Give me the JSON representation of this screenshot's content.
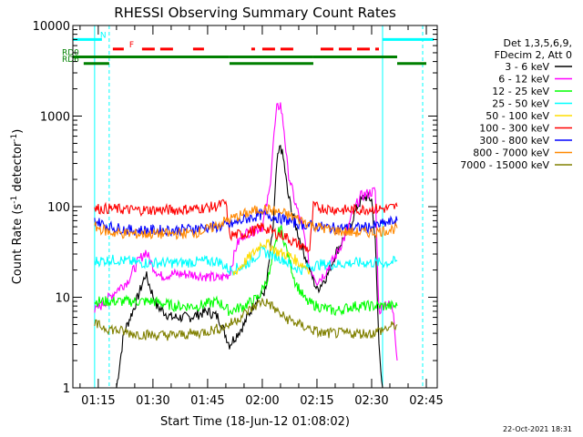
{
  "chart_data": {
    "type": "line",
    "title": "RHESSI Observing Summary Count Rates",
    "xlabel": "Start Time (18-Jun-12 01:08:02)",
    "ylabel_main": "Count Rate (s",
    "ylabel_sup1": "-1",
    "ylabel_mid": " detector",
    "ylabel_sup2": "-1",
    "ylabel_end": ")",
    "y_scale": "log",
    "xlim": [
      "01:08:02",
      "02:48:00"
    ],
    "ylim": [
      1,
      10000
    ],
    "x_ticks": [
      "01:15",
      "01:30",
      "01:45",
      "02:00",
      "02:15",
      "02:30",
      "02:45"
    ],
    "y_ticks": [
      {
        "value": 1,
        "label": "1"
      },
      {
        "value": 10,
        "label": "10"
      },
      {
        "value": 100,
        "label": "100"
      },
      {
        "value": 1000,
        "label": "1000"
      },
      {
        "value": 10000,
        "label": "10000"
      }
    ],
    "legend_header": [
      "Det 1,3,5,6,9,",
      "FDecim 2, Att 0"
    ],
    "legend_placement": "right",
    "series": [
      {
        "name": "3 - 6 keV",
        "color": "#000000",
        "points": [
          [
            "01:20",
            1
          ],
          [
            "01:22",
            4
          ],
          [
            "01:25",
            8
          ],
          [
            "01:28",
            18
          ],
          [
            "01:31",
            8
          ],
          [
            "01:35",
            6
          ],
          [
            "01:40",
            6
          ],
          [
            "01:45",
            7
          ],
          [
            "01:48",
            6
          ],
          [
            "01:51",
            3
          ],
          [
            "01:55",
            5
          ],
          [
            "01:58",
            9
          ],
          [
            "02:01",
            12
          ],
          [
            "02:03",
            60
          ],
          [
            "02:04",
            300
          ],
          [
            "02:05",
            480
          ],
          [
            "02:06",
            300
          ],
          [
            "02:07",
            140
          ],
          [
            "02:09",
            65
          ],
          [
            "02:11",
            35
          ],
          [
            "02:13",
            20
          ],
          [
            "02:15",
            12
          ],
          [
            "02:18",
            18
          ],
          [
            "02:20",
            30
          ],
          [
            "02:24",
            60
          ],
          [
            "02:26",
            100
          ],
          [
            "02:28",
            130
          ],
          [
            "02:30",
            120
          ],
          [
            "02:31",
            40
          ],
          [
            "02:32",
            3
          ],
          [
            "02:33",
            1
          ]
        ]
      },
      {
        "name": "6 - 12 keV",
        "color": "#ff00ff",
        "points": [
          [
            "01:14",
            7
          ],
          [
            "01:17",
            9
          ],
          [
            "01:20",
            12
          ],
          [
            "01:23",
            15
          ],
          [
            "01:26",
            25
          ],
          [
            "01:28",
            32
          ],
          [
            "01:30",
            22
          ],
          [
            "01:32",
            17
          ],
          [
            "01:35",
            18
          ],
          [
            "01:40",
            18
          ],
          [
            "01:45",
            17
          ],
          [
            "01:48",
            16
          ],
          [
            "01:51",
            18
          ],
          [
            "01:53",
            38
          ],
          [
            "01:55",
            50
          ],
          [
            "01:58",
            55
          ],
          [
            "02:00",
            60
          ],
          [
            "02:02",
            150
          ],
          [
            "02:03",
            500
          ],
          [
            "02:04",
            1200
          ],
          [
            "02:05",
            1350
          ],
          [
            "02:06",
            700
          ],
          [
            "02:07",
            250
          ],
          [
            "02:09",
            110
          ],
          [
            "02:11",
            60
          ],
          [
            "02:13",
            22
          ],
          [
            "02:15",
            15
          ],
          [
            "02:17",
            18
          ],
          [
            "02:20",
            28
          ],
          [
            "02:23",
            50
          ],
          [
            "02:25",
            90
          ],
          [
            "02:27",
            130
          ],
          [
            "02:29",
            140
          ],
          [
            "02:31",
            150
          ],
          [
            "02:32",
            7
          ],
          [
            "02:34",
            9
          ],
          [
            "02:36",
            7
          ],
          [
            "02:37",
            2
          ]
        ]
      },
      {
        "name": "12 - 25 keV",
        "color": "#00ff00",
        "points": [
          [
            "01:14",
            9
          ],
          [
            "01:18",
            9
          ],
          [
            "01:24",
            9
          ],
          [
            "01:30",
            9
          ],
          [
            "01:36",
            8
          ],
          [
            "01:42",
            8
          ],
          [
            "01:48",
            9
          ],
          [
            "01:51",
            7
          ],
          [
            "01:55",
            8
          ],
          [
            "01:59",
            10
          ],
          [
            "02:02",
            18
          ],
          [
            "02:04",
            45
          ],
          [
            "02:05",
            60
          ],
          [
            "02:07",
            30
          ],
          [
            "02:09",
            15
          ],
          [
            "02:12",
            9
          ],
          [
            "02:15",
            8
          ],
          [
            "02:20",
            7
          ],
          [
            "02:25",
            8
          ],
          [
            "02:30",
            8
          ],
          [
            "02:33",
            8
          ],
          [
            "02:37",
            8
          ]
        ]
      },
      {
        "name": "25 - 50 keV",
        "color": "#00ffff",
        "points": [
          [
            "01:14",
            25
          ],
          [
            "01:20",
            26
          ],
          [
            "01:26",
            24
          ],
          [
            "01:32",
            24
          ],
          [
            "01:38",
            24
          ],
          [
            "01:44",
            25
          ],
          [
            "01:48",
            25
          ],
          [
            "01:51",
            20
          ],
          [
            "01:55",
            22
          ],
          [
            "01:58",
            28
          ],
          [
            "02:00",
            32
          ],
          [
            "02:02",
            30
          ],
          [
            "02:04",
            28
          ],
          [
            "02:06",
            26
          ],
          [
            "02:08",
            22
          ],
          [
            "02:11",
            20
          ],
          [
            "02:13",
            22
          ],
          [
            "02:16",
            23
          ],
          [
            "02:20",
            23
          ],
          [
            "02:25",
            24
          ],
          [
            "02:30",
            24
          ],
          [
            "02:34",
            24
          ],
          [
            "02:37",
            25
          ]
        ]
      },
      {
        "name": "50 - 100 keV",
        "color": "#ffdd00",
        "points": [
          [
            "01:52",
            18
          ],
          [
            "01:55",
            24
          ],
          [
            "01:58",
            32
          ],
          [
            "02:00",
            40
          ],
          [
            "02:02",
            38
          ],
          [
            "02:04",
            32
          ],
          [
            "02:06",
            30
          ],
          [
            "02:08",
            28
          ],
          [
            "02:10",
            24
          ],
          [
            "02:12",
            22
          ],
          [
            "02:13",
            20
          ]
        ]
      },
      {
        "name": "100 - 300 keV",
        "color": "#ff0000",
        "points": [
          [
            "01:14",
            95
          ],
          [
            "01:18",
            95
          ],
          [
            "01:24",
            92
          ],
          [
            "01:30",
            92
          ],
          [
            "01:36",
            92
          ],
          [
            "01:42",
            95
          ],
          [
            "01:47",
            100
          ],
          [
            "01:50",
            110
          ],
          [
            "01:51",
            48
          ],
          [
            "01:55",
            50
          ],
          [
            "01:58",
            55
          ],
          [
            "02:00",
            60
          ],
          [
            "02:02",
            55
          ],
          [
            "02:04",
            50
          ],
          [
            "02:06",
            48
          ],
          [
            "02:08",
            42
          ],
          [
            "02:10",
            38
          ],
          [
            "02:12",
            35
          ],
          [
            "02:13",
            33
          ],
          [
            "02:14",
            100
          ],
          [
            "02:18",
            95
          ],
          [
            "02:22",
            92
          ],
          [
            "02:26",
            92
          ],
          [
            "02:30",
            95
          ],
          [
            "02:34",
            95
          ],
          [
            "02:37",
            100
          ]
        ]
      },
      {
        "name": "300 - 800 keV",
        "color": "#0000ff",
        "points": [
          [
            "01:14",
            70
          ],
          [
            "01:18",
            60
          ],
          [
            "01:24",
            55
          ],
          [
            "01:30",
            55
          ],
          [
            "01:36",
            55
          ],
          [
            "01:42",
            58
          ],
          [
            "01:48",
            60
          ],
          [
            "01:51",
            62
          ],
          [
            "01:55",
            72
          ],
          [
            "01:58",
            78
          ],
          [
            "02:00",
            82
          ],
          [
            "02:02",
            80
          ],
          [
            "02:04",
            76
          ],
          [
            "02:06",
            72
          ],
          [
            "02:08",
            68
          ],
          [
            "02:10",
            65
          ],
          [
            "02:13",
            62
          ],
          [
            "02:16",
            60
          ],
          [
            "02:20",
            58
          ],
          [
            "02:25",
            58
          ],
          [
            "02:30",
            60
          ],
          [
            "02:34",
            66
          ],
          [
            "02:37",
            70
          ]
        ]
      },
      {
        "name": "800 - 7000 keV",
        "color": "#ff8800",
        "points": [
          [
            "01:14",
            60
          ],
          [
            "01:18",
            52
          ],
          [
            "01:24",
            50
          ],
          [
            "01:30",
            50
          ],
          [
            "01:36",
            50
          ],
          [
            "01:42",
            52
          ],
          [
            "01:46",
            58
          ],
          [
            "01:50",
            70
          ],
          [
            "01:54",
            80
          ],
          [
            "01:58",
            90
          ],
          [
            "02:00",
            95
          ],
          [
            "02:02",
            92
          ],
          [
            "02:04",
            88
          ],
          [
            "02:06",
            84
          ],
          [
            "02:08",
            78
          ],
          [
            "02:11",
            70
          ],
          [
            "02:14",
            62
          ],
          [
            "02:18",
            56
          ],
          [
            "02:22",
            53
          ],
          [
            "02:26",
            52
          ],
          [
            "02:30",
            52
          ],
          [
            "02:34",
            55
          ],
          [
            "02:37",
            58
          ]
        ]
      },
      {
        "name": "7000 - 15000 keV",
        "color": "#808000",
        "points": [
          [
            "01:14",
            5
          ],
          [
            "01:18",
            4.5
          ],
          [
            "01:24",
            4
          ],
          [
            "01:30",
            3.8
          ],
          [
            "01:36",
            3.8
          ],
          [
            "01:42",
            4
          ],
          [
            "01:48",
            4.5
          ],
          [
            "01:51",
            5
          ],
          [
            "01:55",
            6.5
          ],
          [
            "01:58",
            8
          ],
          [
            "02:00",
            9
          ],
          [
            "02:02",
            8.5
          ],
          [
            "02:04",
            7
          ],
          [
            "02:06",
            6
          ],
          [
            "02:08",
            5.5
          ],
          [
            "02:10",
            5
          ],
          [
            "02:13",
            4.5
          ],
          [
            "02:16",
            4
          ],
          [
            "02:20",
            4
          ],
          [
            "02:25",
            4
          ],
          [
            "02:30",
            4
          ],
          [
            "02:34",
            4.5
          ],
          [
            "02:37",
            5
          ]
        ]
      }
    ],
    "flag_bars": [
      {
        "label": "N",
        "label_color": "#00ffff",
        "color": "#00ffff",
        "value": 7000,
        "segments": [
          [
            "01:08:02",
            "01:16"
          ],
          [
            "02:33",
            "02:47"
          ]
        ]
      },
      {
        "label": "F",
        "label_color": "#ff0000",
        "color": "#ff0000",
        "value": 5500,
        "dashed": true,
        "segments": [
          [
            "01:19",
            "01:22"
          ],
          [
            "01:27",
            "01:36"
          ],
          [
            "01:41",
            "01:44"
          ],
          [
            "01:57",
            "01:58"
          ],
          [
            "02:00",
            "02:10"
          ],
          [
            "02:16",
            "02:32"
          ]
        ]
      },
      {
        "label": "RD0",
        "label_color": "#008000",
        "color": "#008000",
        "value": 4500,
        "segments": [
          [
            "01:08:02",
            "01:51"
          ],
          [
            "01:51",
            "02:14"
          ],
          [
            "02:14",
            "02:37"
          ]
        ]
      },
      {
        "label": "RD6",
        "label_color": "#008000",
        "color": "#008000",
        "value": 3800,
        "segments": [
          [
            "01:11",
            "01:18"
          ],
          [
            "01:51",
            "02:14"
          ],
          [
            "02:37",
            "02:45"
          ]
        ]
      }
    ],
    "vlines": [
      {
        "time": "01:14",
        "color": "#00ffff",
        "style": "solid"
      },
      {
        "time": "01:18",
        "color": "#00ffff",
        "style": "dashed"
      },
      {
        "time": "02:33",
        "color": "#00ffff",
        "style": "solid"
      },
      {
        "time": "02:44",
        "color": "#00ffff",
        "style": "dashed"
      }
    ],
    "footer_date": "22-Oct-2021 18:31"
  }
}
